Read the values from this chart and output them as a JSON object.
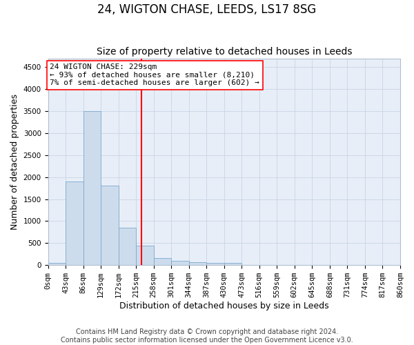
{
  "title": "24, WIGTON CHASE, LEEDS, LS17 8SG",
  "subtitle": "Size of property relative to detached houses in Leeds",
  "xlabel": "Distribution of detached houses by size in Leeds",
  "ylabel": "Number of detached properties",
  "footer_line1": "Contains HM Land Registry data © Crown copyright and database right 2024.",
  "footer_line2": "Contains public sector information licensed under the Open Government Licence v3.0.",
  "bar_edges": [
    0,
    43,
    86,
    129,
    172,
    215,
    258,
    301,
    344,
    387,
    430,
    473,
    516,
    559,
    602,
    645,
    688,
    731,
    774,
    817,
    860
  ],
  "bar_heights": [
    50,
    1900,
    3500,
    1800,
    850,
    450,
    160,
    95,
    70,
    55,
    45,
    0,
    0,
    0,
    0,
    0,
    0,
    0,
    0,
    0
  ],
  "bar_color": "#cddcec",
  "bar_edge_color": "#7ba8cc",
  "vline_x": 229,
  "vline_color": "red",
  "annotation_line1": "24 WIGTON CHASE: 229sqm",
  "annotation_line2": "← 93% of detached houses are smaller (8,210)",
  "annotation_line3": "7% of semi-detached houses are larger (602) →",
  "ylim": [
    0,
    4700
  ],
  "yticks": [
    0,
    500,
    1000,
    1500,
    2000,
    2500,
    3000,
    3500,
    4000,
    4500
  ],
  "grid_color": "#c8d4e4",
  "background_color": "#e8eef8",
  "title_fontsize": 12,
  "subtitle_fontsize": 10,
  "axis_label_fontsize": 9,
  "tick_fontsize": 7.5,
  "annotation_fontsize": 8,
  "footer_fontsize": 7
}
